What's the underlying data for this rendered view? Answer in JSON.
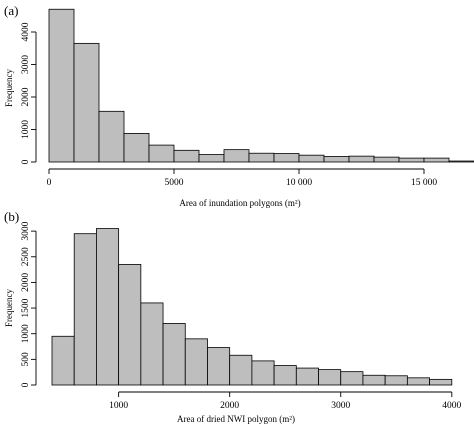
{
  "chart_data": [
    {
      "type": "bar",
      "panel_label": "(a)",
      "xlabel": "Area of inundation polygons (m²)",
      "ylabel": "Frequency",
      "bin_width": 1000,
      "x_bins_start": 0,
      "values": [
        4700,
        3650,
        1560,
        880,
        520,
        360,
        230,
        380,
        270,
        260,
        210,
        170,
        180,
        150,
        120,
        120,
        30
      ],
      "xlim": [
        0,
        17000
      ],
      "ylim": [
        0,
        4800
      ],
      "x_ticks": [
        0,
        5000,
        10000,
        15000
      ],
      "x_tick_labels": [
        "0",
        "5000",
        "10 000",
        "15 000"
      ],
      "y_ticks": [
        0,
        1000,
        2000,
        3000,
        4000
      ],
      "y_tick_labels": [
        "0",
        "1000",
        "2000",
        "3000",
        "4000"
      ],
      "bar_color": "#bebebe"
    },
    {
      "type": "bar",
      "panel_label": "(b)",
      "xlabel": "Area of dried NWI polygon (m²)",
      "ylabel": "Frequency",
      "bin_width": 200,
      "x_bins_start": 400,
      "values": [
        950,
        2950,
        3050,
        2350,
        1600,
        1200,
        900,
        730,
        580,
        470,
        380,
        330,
        300,
        260,
        190,
        180,
        140,
        110
      ],
      "xlim": [
        400,
        4200
      ],
      "ylim": [
        0,
        3100
      ],
      "x_ticks": [
        1000,
        2000,
        3000,
        4000
      ],
      "x_tick_labels": [
        "1000",
        "2000",
        "3000",
        "4000"
      ],
      "y_ticks": [
        0,
        500,
        1000,
        1500,
        2000,
        2500,
        3000
      ],
      "y_tick_labels": [
        "0",
        "500",
        "1000",
        "1500",
        "2000",
        "2500",
        "3000"
      ],
      "bar_color": "#bebebe"
    }
  ]
}
